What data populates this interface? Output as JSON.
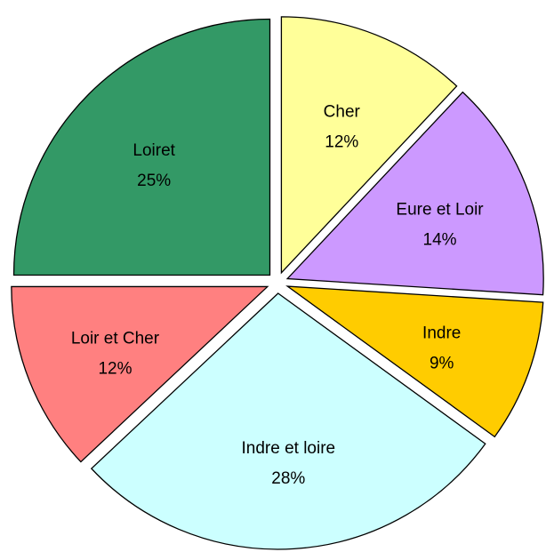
{
  "chart_data": {
    "type": "pie",
    "categories": [
      "Cher",
      "Eure et Loir",
      "Indre",
      "Indre et loire",
      "Loir et Cher",
      "Loiret"
    ],
    "values": [
      12,
      14,
      9,
      28,
      12,
      25
    ],
    "value_labels": [
      "12%",
      "14%",
      "9%",
      "28%",
      "12%",
      "25%"
    ],
    "colors": [
      "#ffff99",
      "#cc99ff",
      "#ffcc00",
      "#ccffff",
      "#ff8080",
      "#339966"
    ]
  }
}
